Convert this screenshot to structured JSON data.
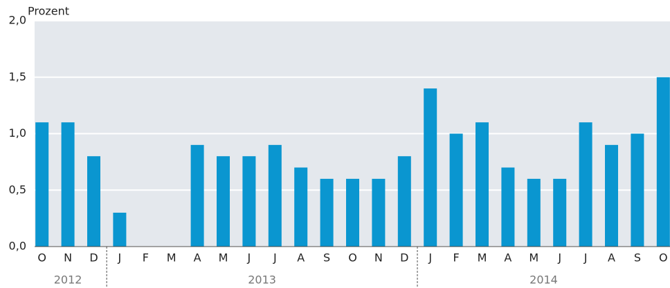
{
  "chart_data": {
    "type": "bar",
    "y_axis_label": "Prozent",
    "color": "#0a96d0",
    "ylim": [
      0,
      2
    ],
    "yticks": [
      {
        "value": 0,
        "label": "0,0"
      },
      {
        "value": 0.5,
        "label": "0,5"
      },
      {
        "value": 1,
        "label": "1,0"
      },
      {
        "value": 1.5,
        "label": "1,5"
      },
      {
        "value": 2,
        "label": "2,0"
      }
    ],
    "grid": true,
    "groups": [
      {
        "name": "2012",
        "categories": [
          "O",
          "N",
          "D"
        ],
        "values": [
          1.1,
          1.1,
          0.8
        ]
      },
      {
        "name": "2013",
        "categories": [
          "J",
          "F",
          "M",
          "A",
          "M",
          "J",
          "J",
          "A",
          "S",
          "O",
          "N",
          "D"
        ],
        "values": [
          0.3,
          0,
          0,
          0.9,
          0.8,
          0.8,
          0.9,
          0.7,
          0.6,
          0.6,
          0.6,
          0.8
        ]
      },
      {
        "name": "2014",
        "categories": [
          "J",
          "F",
          "M",
          "A",
          "M",
          "J",
          "J",
          "A",
          "S",
          "O"
        ],
        "values": [
          1.4,
          1.0,
          1.1,
          0.7,
          0.6,
          0.6,
          1.1,
          0.9,
          1.0,
          1.5
        ]
      }
    ]
  }
}
